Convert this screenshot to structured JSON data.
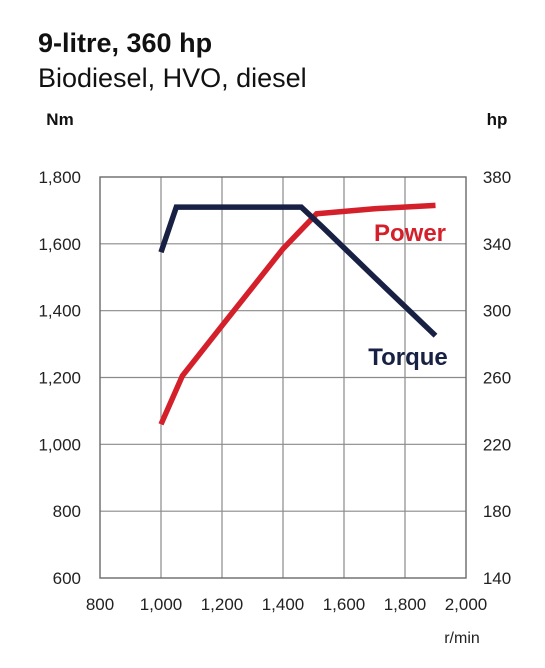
{
  "header": {
    "title": "9-litre, 360 hp",
    "subtitle": "Biodiesel, HVO, diesel"
  },
  "chart_data": {
    "type": "line",
    "xlabel": "r/min",
    "y_left_label": "Nm",
    "y_right_label": "hp",
    "xlim": [
      800,
      2000
    ],
    "y_left_lim": [
      600,
      1800
    ],
    "y_right_lim": [
      140,
      380
    ],
    "x_ticks": [
      "800",
      "1,000",
      "1,200",
      "1,400",
      "1,600",
      "1,800",
      "2,000"
    ],
    "y_left_ticks": [
      "600",
      "800",
      "1,000",
      "1,200",
      "1,400",
      "1,600",
      "1,800"
    ],
    "y_right_ticks": [
      "140",
      "180",
      "220",
      "260",
      "300",
      "340",
      "380"
    ],
    "grid": true,
    "series": [
      {
        "name": "Power",
        "axis": "right",
        "color": "#d4202b",
        "points": [
          [
            1000,
            232
          ],
          [
            1070,
            261
          ],
          [
            1200,
            291
          ],
          [
            1300,
            314
          ],
          [
            1400,
            337
          ],
          [
            1510,
            358
          ],
          [
            1700,
            361
          ],
          [
            1900,
            363
          ]
        ]
      },
      {
        "name": "Torque",
        "axis": "left",
        "color": "#182144",
        "points": [
          [
            1000,
            1575
          ],
          [
            1050,
            1710
          ],
          [
            1460,
            1710
          ],
          [
            1530,
            1650
          ],
          [
            1700,
            1500
          ],
          [
            1900,
            1325
          ]
        ]
      }
    ]
  }
}
